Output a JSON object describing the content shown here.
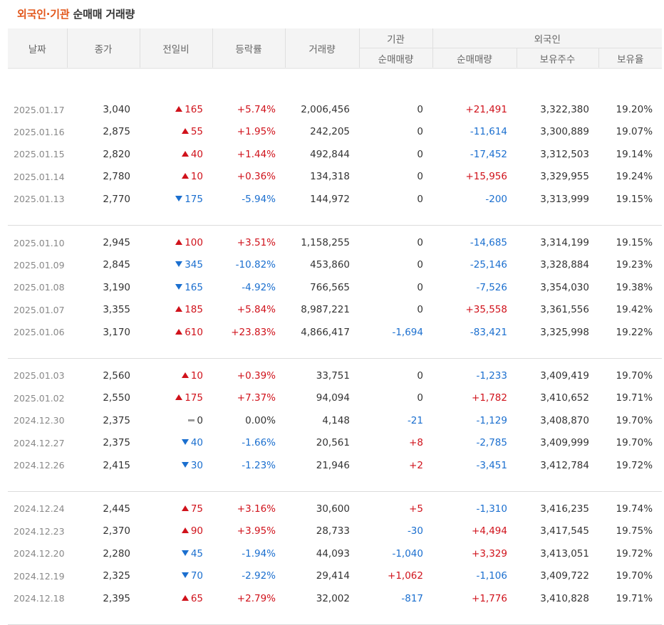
{
  "title": {
    "accent": "외국인·기관",
    "rest": " 순매매 거래량"
  },
  "headers": {
    "date": "날짜",
    "close": "종가",
    "change": "전일비",
    "rate": "등락률",
    "volume": "거래량",
    "institution": "기관",
    "foreign": "외국인",
    "inst_net": "순매매량",
    "frgn_net": "순매매량",
    "frgn_hold": "보유주수",
    "frgn_ratio": "보유율"
  },
  "colors": {
    "up": "#d0121b",
    "down": "#1b6fcf",
    "accent": "#e2561a"
  },
  "groups": [
    [
      {
        "date": "2025.01.17",
        "close": "3,040",
        "dir": "up",
        "change": "165",
        "rate": "+5.74%",
        "volume": "2,006,456",
        "inst": "0",
        "inst_dir": "flat",
        "frgn": "+21,491",
        "frgn_dir": "up",
        "hold": "3,322,380",
        "ratio": "19.20%"
      },
      {
        "date": "2025.01.16",
        "close": "2,875",
        "dir": "up",
        "change": "55",
        "rate": "+1.95%",
        "volume": "242,205",
        "inst": "0",
        "inst_dir": "flat",
        "frgn": "-11,614",
        "frgn_dir": "down",
        "hold": "3,300,889",
        "ratio": "19.07%"
      },
      {
        "date": "2025.01.15",
        "close": "2,820",
        "dir": "up",
        "change": "40",
        "rate": "+1.44%",
        "volume": "492,844",
        "inst": "0",
        "inst_dir": "flat",
        "frgn": "-17,452",
        "frgn_dir": "down",
        "hold": "3,312,503",
        "ratio": "19.14%"
      },
      {
        "date": "2025.01.14",
        "close": "2,780",
        "dir": "up",
        "change": "10",
        "rate": "+0.36%",
        "volume": "134,318",
        "inst": "0",
        "inst_dir": "flat",
        "frgn": "+15,956",
        "frgn_dir": "up",
        "hold": "3,329,955",
        "ratio": "19.24%"
      },
      {
        "date": "2025.01.13",
        "close": "2,770",
        "dir": "down",
        "change": "175",
        "rate": "-5.94%",
        "volume": "144,972",
        "inst": "0",
        "inst_dir": "flat",
        "frgn": "-200",
        "frgn_dir": "down",
        "hold": "3,313,999",
        "ratio": "19.15%"
      }
    ],
    [
      {
        "date": "2025.01.10",
        "close": "2,945",
        "dir": "up",
        "change": "100",
        "rate": "+3.51%",
        "volume": "1,158,255",
        "inst": "0",
        "inst_dir": "flat",
        "frgn": "-14,685",
        "frgn_dir": "down",
        "hold": "3,314,199",
        "ratio": "19.15%"
      },
      {
        "date": "2025.01.09",
        "close": "2,845",
        "dir": "down",
        "change": "345",
        "rate": "-10.82%",
        "volume": "453,860",
        "inst": "0",
        "inst_dir": "flat",
        "frgn": "-25,146",
        "frgn_dir": "down",
        "hold": "3,328,884",
        "ratio": "19.23%"
      },
      {
        "date": "2025.01.08",
        "close": "3,190",
        "dir": "down",
        "change": "165",
        "rate": "-4.92%",
        "volume": "766,565",
        "inst": "0",
        "inst_dir": "flat",
        "frgn": "-7,526",
        "frgn_dir": "down",
        "hold": "3,354,030",
        "ratio": "19.38%"
      },
      {
        "date": "2025.01.07",
        "close": "3,355",
        "dir": "up",
        "change": "185",
        "rate": "+5.84%",
        "volume": "8,987,221",
        "inst": "0",
        "inst_dir": "flat",
        "frgn": "+35,558",
        "frgn_dir": "up",
        "hold": "3,361,556",
        "ratio": "19.42%"
      },
      {
        "date": "2025.01.06",
        "close": "3,170",
        "dir": "up",
        "change": "610",
        "rate": "+23.83%",
        "volume": "4,866,417",
        "inst": "-1,694",
        "inst_dir": "down",
        "frgn": "-83,421",
        "frgn_dir": "down",
        "hold": "3,325,998",
        "ratio": "19.22%"
      }
    ],
    [
      {
        "date": "2025.01.03",
        "close": "2,560",
        "dir": "up",
        "change": "10",
        "rate": "+0.39%",
        "volume": "33,751",
        "inst": "0",
        "inst_dir": "flat",
        "frgn": "-1,233",
        "frgn_dir": "down",
        "hold": "3,409,419",
        "ratio": "19.70%"
      },
      {
        "date": "2025.01.02",
        "close": "2,550",
        "dir": "up",
        "change": "175",
        "rate": "+7.37%",
        "volume": "94,094",
        "inst": "0",
        "inst_dir": "flat",
        "frgn": "+1,782",
        "frgn_dir": "up",
        "hold": "3,410,652",
        "ratio": "19.71%"
      },
      {
        "date": "2024.12.30",
        "close": "2,375",
        "dir": "flat",
        "change": "0",
        "rate": "0.00%",
        "volume": "4,148",
        "inst": "-21",
        "inst_dir": "down",
        "frgn": "-1,129",
        "frgn_dir": "down",
        "hold": "3,408,870",
        "ratio": "19.70%"
      },
      {
        "date": "2024.12.27",
        "close": "2,375",
        "dir": "down",
        "change": "40",
        "rate": "-1.66%",
        "volume": "20,561",
        "inst": "+8",
        "inst_dir": "up",
        "frgn": "-2,785",
        "frgn_dir": "down",
        "hold": "3,409,999",
        "ratio": "19.70%"
      },
      {
        "date": "2024.12.26",
        "close": "2,415",
        "dir": "down",
        "change": "30",
        "rate": "-1.23%",
        "volume": "21,946",
        "inst": "+2",
        "inst_dir": "up",
        "frgn": "-3,451",
        "frgn_dir": "down",
        "hold": "3,412,784",
        "ratio": "19.72%"
      }
    ],
    [
      {
        "date": "2024.12.24",
        "close": "2,445",
        "dir": "up",
        "change": "75",
        "rate": "+3.16%",
        "volume": "30,600",
        "inst": "+5",
        "inst_dir": "up",
        "frgn": "-1,310",
        "frgn_dir": "down",
        "hold": "3,416,235",
        "ratio": "19.74%"
      },
      {
        "date": "2024.12.23",
        "close": "2,370",
        "dir": "up",
        "change": "90",
        "rate": "+3.95%",
        "volume": "28,733",
        "inst": "-30",
        "inst_dir": "down",
        "frgn": "+4,494",
        "frgn_dir": "up",
        "hold": "3,417,545",
        "ratio": "19.75%"
      },
      {
        "date": "2024.12.20",
        "close": "2,280",
        "dir": "down",
        "change": "45",
        "rate": "-1.94%",
        "volume": "44,093",
        "inst": "-1,040",
        "inst_dir": "down",
        "frgn": "+3,329",
        "frgn_dir": "up",
        "hold": "3,413,051",
        "ratio": "19.72%"
      },
      {
        "date": "2024.12.19",
        "close": "2,325",
        "dir": "down",
        "change": "70",
        "rate": "-2.92%",
        "volume": "29,414",
        "inst": "+1,062",
        "inst_dir": "up",
        "frgn": "-1,106",
        "frgn_dir": "down",
        "hold": "3,409,722",
        "ratio": "19.70%"
      },
      {
        "date": "2024.12.18",
        "close": "2,395",
        "dir": "up",
        "change": "65",
        "rate": "+2.79%",
        "volume": "32,002",
        "inst": "-817",
        "inst_dir": "down",
        "frgn": "+1,776",
        "frgn_dir": "up",
        "hold": "3,410,828",
        "ratio": "19.71%"
      }
    ]
  ]
}
